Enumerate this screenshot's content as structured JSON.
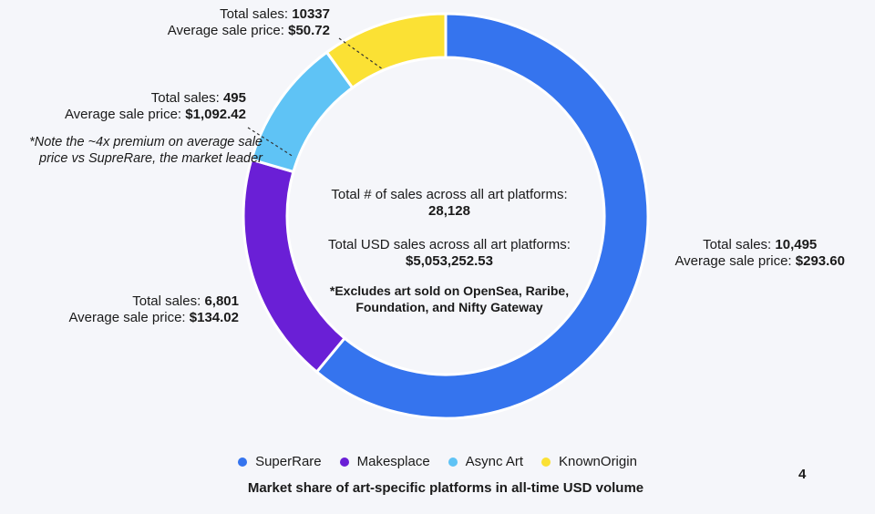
{
  "chart_data": {
    "type": "pie",
    "subtype": "donut",
    "title": "Market share of art-specific platforms in all-time USD volume",
    "categories": [
      "SuperRare",
      "Makesplace",
      "Async Art",
      "KnownOrigin"
    ],
    "values": [
      61,
      18.5,
      10.5,
      10
    ],
    "colors": [
      "#3574ee",
      "#6a1fd6",
      "#5fc3f5",
      "#fbe134"
    ],
    "annotations": [
      {
        "category": "SuperRare",
        "sales_label": "Total sales: ",
        "sales_value": "10,495",
        "price_label": "Average sale price: ",
        "price_value": "$293.60"
      },
      {
        "category": "Makesplace",
        "sales_label": "Total sales: ",
        "sales_value": "6,801",
        "price_label": "Average sale price: ",
        "price_value": "$134.02"
      },
      {
        "category": "Async Art",
        "sales_label": "Total sales: ",
        "sales_value": "495",
        "price_label": "Average sale price: ",
        "price_value": "$1,092.42"
      },
      {
        "category": "KnownOrigin",
        "sales_label": "Total sales: ",
        "sales_value": "10337",
        "price_label": "Average sale price: ",
        "price_value": "$50.72"
      }
    ],
    "note_line1": "*Note the ~4x premium on average sale",
    "note_line2": "price vs SupreRare, the market leader",
    "center": {
      "sales_label": "Total # of sales across all art platforms:",
      "sales_value": "28,128",
      "usd_label": "Total USD sales across all art platforms:",
      "usd_value": "$5,053,252.53",
      "excl_line1": "*Excludes art sold on OpenSea, Raribe,",
      "excl_line2": "Foundation, and Nifty Gateway"
    }
  },
  "page_number": "4"
}
